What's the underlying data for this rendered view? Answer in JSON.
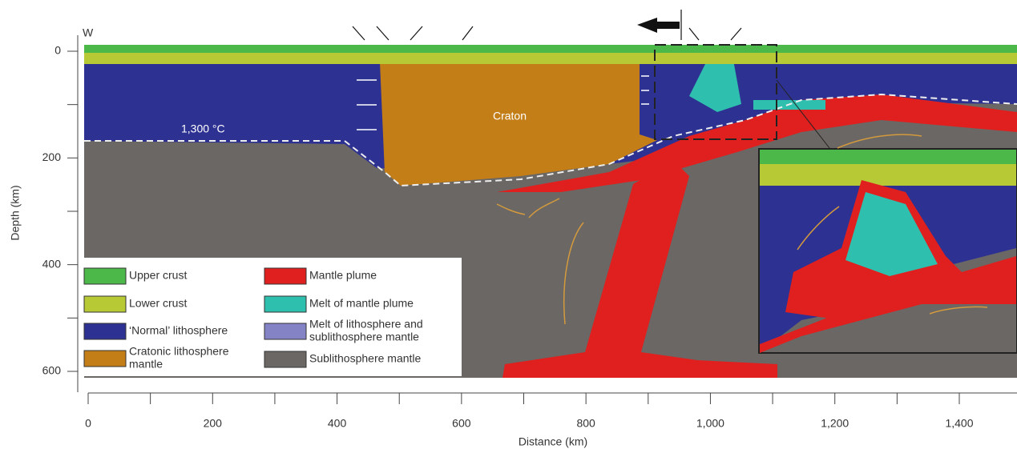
{
  "figure": {
    "xlabel": "Distance (km)",
    "ylabel": "Depth (km)",
    "xticks": [
      0,
      200,
      400,
      600,
      800,
      {
        "value": 1000,
        "label": "1,000"
      },
      {
        "value": 1200,
        "label": "1,200"
      },
      {
        "value": 1400,
        "label": "1,400"
      }
    ],
    "yticks": [
      0,
      200,
      400,
      600
    ],
    "labels": {
      "west": "W",
      "isotherm": "1,300 °C",
      "craton": "Craton"
    },
    "legend": [
      {
        "lines": [
          "Upper crust"
        ],
        "color": "#4cb84a"
      },
      {
        "lines": [
          "Lower crust"
        ],
        "color": "#b7c934"
      },
      {
        "lines": [
          "‘Normal’ lithosphere"
        ],
        "color": "#2d3192"
      },
      {
        "lines": [
          "Cratonic lithosphere",
          "mantle"
        ],
        "color": "#c47e18"
      },
      {
        "lines": [
          "Mantle plume"
        ],
        "color": "#e0201f"
      },
      {
        "lines": [
          "Melt of mantle plume"
        ],
        "color": "#2fbfae"
      },
      {
        "lines": [
          "Melt of lithosphere and",
          "sublithosphere mantle"
        ],
        "color": "#8483c6"
      },
      {
        "lines": [
          "Sublithosphere mantle"
        ],
        "color": "#6a6765"
      }
    ]
  }
}
